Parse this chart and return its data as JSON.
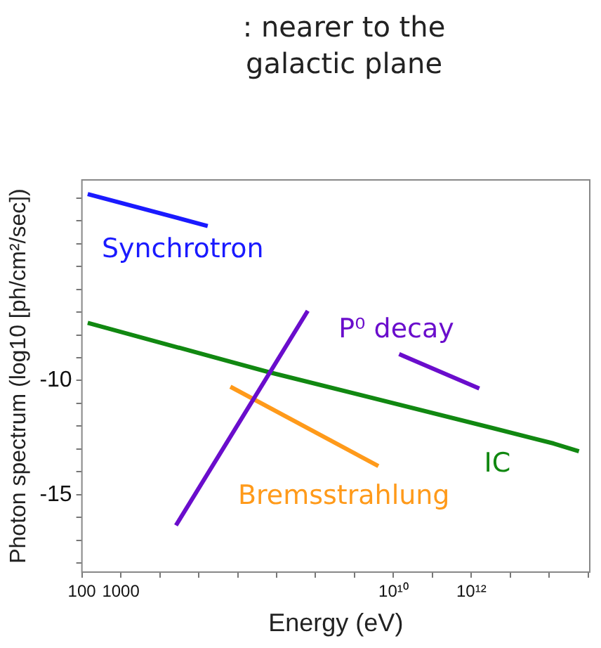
{
  "chart_data": {
    "type": "line",
    "title": ": nearer to the galactic plane",
    "xlabel": "Energy (eV)",
    "ylabel": "Photon spectrum (log10 [ph/cm²/sec])",
    "log": "x",
    "xlim": [
      100,
      1100000000000000.0
    ],
    "ylim": [
      -18.4,
      -1.2
    ],
    "xticks": [
      {
        "value": 100,
        "label": "100"
      },
      {
        "value": 1000,
        "label": "1000"
      },
      {
        "value": 10000.0,
        "label": null
      },
      {
        "value": 100000.0,
        "label": null
      },
      {
        "value": 1000000.0,
        "label": null
      },
      {
        "value": 10000000.0,
        "label": null
      },
      {
        "value": 100000000.0,
        "label": null
      },
      {
        "value": 1000000000.0,
        "label": null
      },
      {
        "value": 10000000000.0,
        "label": "10¹⁰"
      },
      {
        "value": 100000000000.0,
        "label": null
      },
      {
        "value": 1000000000000.0,
        "label": "10¹²"
      },
      {
        "value": 10000000000000.0,
        "label": null
      },
      {
        "value": 100000000000000.0,
        "label": null
      },
      {
        "value": 1000000000000000.0,
        "label": null
      }
    ],
    "yticks": [
      {
        "value": -18,
        "label": null
      },
      {
        "value": -17,
        "label": null
      },
      {
        "value": -16,
        "label": null
      },
      -15,
      {
        "value": -14,
        "label": null
      },
      {
        "value": -13,
        "label": null
      },
      {
        "value": -12,
        "label": null
      },
      {
        "value": -11,
        "label": null
      },
      -10,
      {
        "value": -9,
        "label": null
      },
      {
        "value": -8,
        "label": null
      },
      {
        "value": -7,
        "label": null
      },
      {
        "value": -6,
        "label": null
      },
      {
        "value": -5,
        "label": null
      },
      {
        "value": -4,
        "label": null
      },
      {
        "value": -3,
        "label": null
      },
      {
        "value": -2,
        "label": null
      }
    ],
    "grid": false,
    "legend": false,
    "marker": "none",
    "line_style": "solid",
    "series": [
      {
        "name": "Synchrotron",
        "color": "#1a1aff",
        "x": [
          141,
          170000.0
        ],
        "values": [
          -1.82,
          -3.22
        ]
      },
      {
        "name": "P⁰ decay",
        "color": "#6a0dcc",
        "x": [
          26000.0,
          63000000.0,
          1000000000.0,
          14000000000.0,
          1600000000000.0
        ],
        "values": [
          -16.35,
          -6.94,
          null,
          -8.84,
          -10.35
        ]
      },
      {
        "name": "IC",
        "color": "#118811",
        "x": [
          141,
          6300000.0,
          3500000000000.0,
          130000000000000.0,
          580000000000000.0
        ],
        "values": [
          -7.47,
          -9.63,
          -12.08,
          -12.76,
          -13.1
        ]
      },
      {
        "name": "Bremsstrahlung",
        "color": "#ff9a1a",
        "x": [
          650000.0,
          4100000000.0
        ],
        "values": [
          -10.27,
          -13.75
        ]
      }
    ]
  }
}
